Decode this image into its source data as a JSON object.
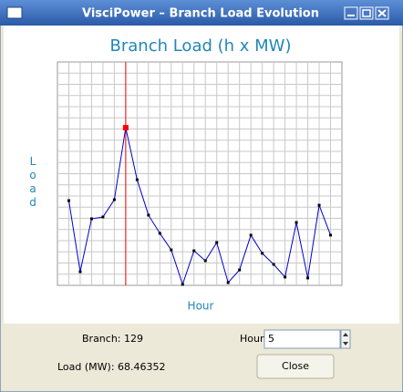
{
  "window": {
    "title": "VisciPower – Branch Load Evolution"
  },
  "chart_data": {
    "type": "line",
    "title": "Branch Load (h x MW)",
    "x_label": "Hour",
    "y_label": "Load",
    "x": [
      0,
      1,
      2,
      3,
      4,
      5,
      6,
      7,
      8,
      9,
      10,
      11,
      12,
      13,
      14,
      15,
      16,
      17,
      18,
      19,
      20,
      21,
      22,
      23
    ],
    "values": [
      36.8,
      5.9,
      28.9,
      29.7,
      37.2,
      68.46352,
      45.9,
      30.5,
      22.6,
      15.4,
      0.4,
      15.0,
      10.7,
      18.6,
      1.2,
      6.7,
      21.8,
      13.9,
      9.1,
      3.6,
      27.3,
      3.2,
      34.8,
      21.8
    ],
    "color": "#0000cc",
    "marker_color": "#000000",
    "highlight_color": "#ff0000",
    "xlim": [
      -1,
      24
    ],
    "ylim": [
      0,
      97
    ],
    "grid": true
  },
  "controls": {
    "branch_text": "Branch: 129",
    "hour_label": "Hour",
    "hour": 5,
    "load_text": "Load (MW): 68.46352",
    "close": "Close"
  }
}
